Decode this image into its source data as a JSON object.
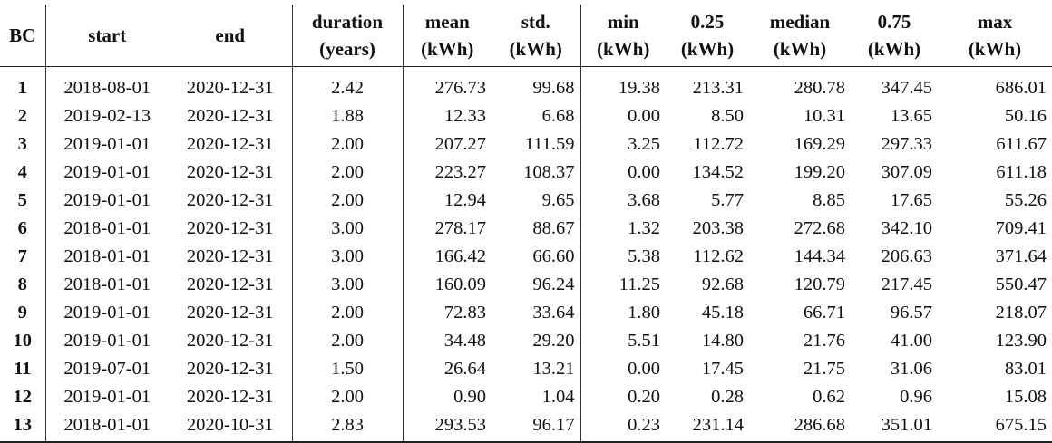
{
  "table": {
    "headers": [
      {
        "line1": "BC",
        "line2": ""
      },
      {
        "line1": "start",
        "line2": ""
      },
      {
        "line1": "end",
        "line2": ""
      },
      {
        "line1": "duration",
        "line2": "(years)"
      },
      {
        "line1": "mean",
        "line2": "(kWh)"
      },
      {
        "line1": "std.",
        "line2": "(kWh)"
      },
      {
        "line1": "min",
        "line2": "(kWh)"
      },
      {
        "line1": "0.25",
        "line2": "(kWh)"
      },
      {
        "line1": "median",
        "line2": "(kWh)"
      },
      {
        "line1": "0.75",
        "line2": "(kWh)"
      },
      {
        "line1": "max",
        "line2": "(kWh)"
      }
    ],
    "rows": [
      [
        "1",
        "2018-08-01",
        "2020-12-31",
        "2.42",
        "276.73",
        "99.68",
        "19.38",
        "213.31",
        "280.78",
        "347.45",
        "686.01"
      ],
      [
        "2",
        "2019-02-13",
        "2020-12-31",
        "1.88",
        "12.33",
        "6.68",
        "0.00",
        "8.50",
        "10.31",
        "13.65",
        "50.16"
      ],
      [
        "3",
        "2019-01-01",
        "2020-12-31",
        "2.00",
        "207.27",
        "111.59",
        "3.25",
        "112.72",
        "169.29",
        "297.33",
        "611.67"
      ],
      [
        "4",
        "2019-01-01",
        "2020-12-31",
        "2.00",
        "223.27",
        "108.37",
        "0.00",
        "134.52",
        "199.20",
        "307.09",
        "611.18"
      ],
      [
        "5",
        "2019-01-01",
        "2020-12-31",
        "2.00",
        "12.94",
        "9.65",
        "3.68",
        "5.77",
        "8.85",
        "17.65",
        "55.26"
      ],
      [
        "6",
        "2018-01-01",
        "2020-12-31",
        "3.00",
        "278.17",
        "88.67",
        "1.32",
        "203.38",
        "272.68",
        "342.10",
        "709.41"
      ],
      [
        "7",
        "2018-01-01",
        "2020-12-31",
        "3.00",
        "166.42",
        "66.60",
        "5.38",
        "112.62",
        "144.34",
        "206.63",
        "371.64"
      ],
      [
        "8",
        "2018-01-01",
        "2020-12-31",
        "3.00",
        "160.09",
        "96.24",
        "11.25",
        "92.68",
        "120.79",
        "217.45",
        "550.47"
      ],
      [
        "9",
        "2019-01-01",
        "2020-12-31",
        "2.00",
        "72.83",
        "33.64",
        "1.80",
        "45.18",
        "66.71",
        "96.57",
        "218.07"
      ],
      [
        "10",
        "2019-01-01",
        "2020-12-31",
        "2.00",
        "34.48",
        "29.20",
        "5.51",
        "14.80",
        "21.76",
        "41.00",
        "123.90"
      ],
      [
        "11",
        "2019-07-01",
        "2020-12-31",
        "1.50",
        "26.64",
        "13.21",
        "0.00",
        "17.45",
        "21.75",
        "31.06",
        "83.01"
      ],
      [
        "12",
        "2019-01-01",
        "2020-12-31",
        "2.00",
        "0.90",
        "1.04",
        "0.20",
        "0.28",
        "0.62",
        "0.96",
        "15.08"
      ],
      [
        "13",
        "2018-01-01",
        "2020-10-31",
        "2.83",
        "293.53",
        "96.17",
        "0.23",
        "231.14",
        "286.68",
        "351.01",
        "675.15"
      ]
    ]
  }
}
